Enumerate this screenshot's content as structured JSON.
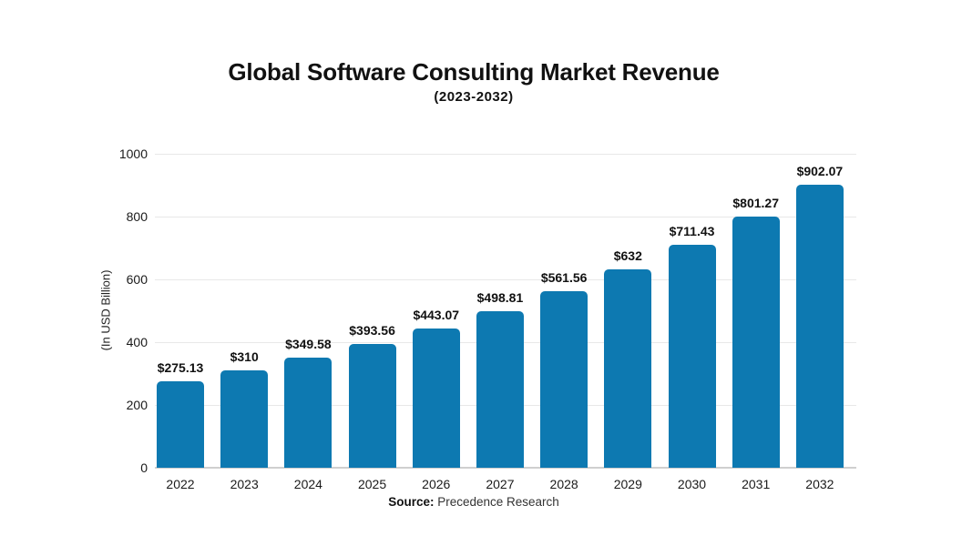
{
  "header": {
    "title": "Global Software Consulting Market Revenue",
    "subtitle": "(2023-2032)"
  },
  "source": {
    "label": "Source:",
    "text": " Precedence Research"
  },
  "chart_data": {
    "type": "bar",
    "title": "Global Software Consulting Market Revenue",
    "subtitle": "(2023-2032)",
    "categories": [
      "2022",
      "2023",
      "2024",
      "2025",
      "2026",
      "2027",
      "2028",
      "2029",
      "2030",
      "2031",
      "2032"
    ],
    "values": [
      275.13,
      310,
      349.58,
      393.56,
      443.07,
      498.81,
      561.56,
      632,
      711.43,
      801.27,
      902.07
    ],
    "value_labels": [
      "$275.13",
      "$310",
      "$349.58",
      "$393.56",
      "$443.07",
      "$498.81",
      "$561.56",
      "$632",
      "$711.43",
      "$801.27",
      "$902.07"
    ],
    "xlabel": "",
    "ylabel": "(In USD Billion)",
    "ylim": [
      0,
      1000
    ],
    "yticks": [
      0,
      200,
      400,
      600,
      800,
      1000
    ],
    "grid": true,
    "legend": "none",
    "bar_color": "#0d79b1"
  }
}
